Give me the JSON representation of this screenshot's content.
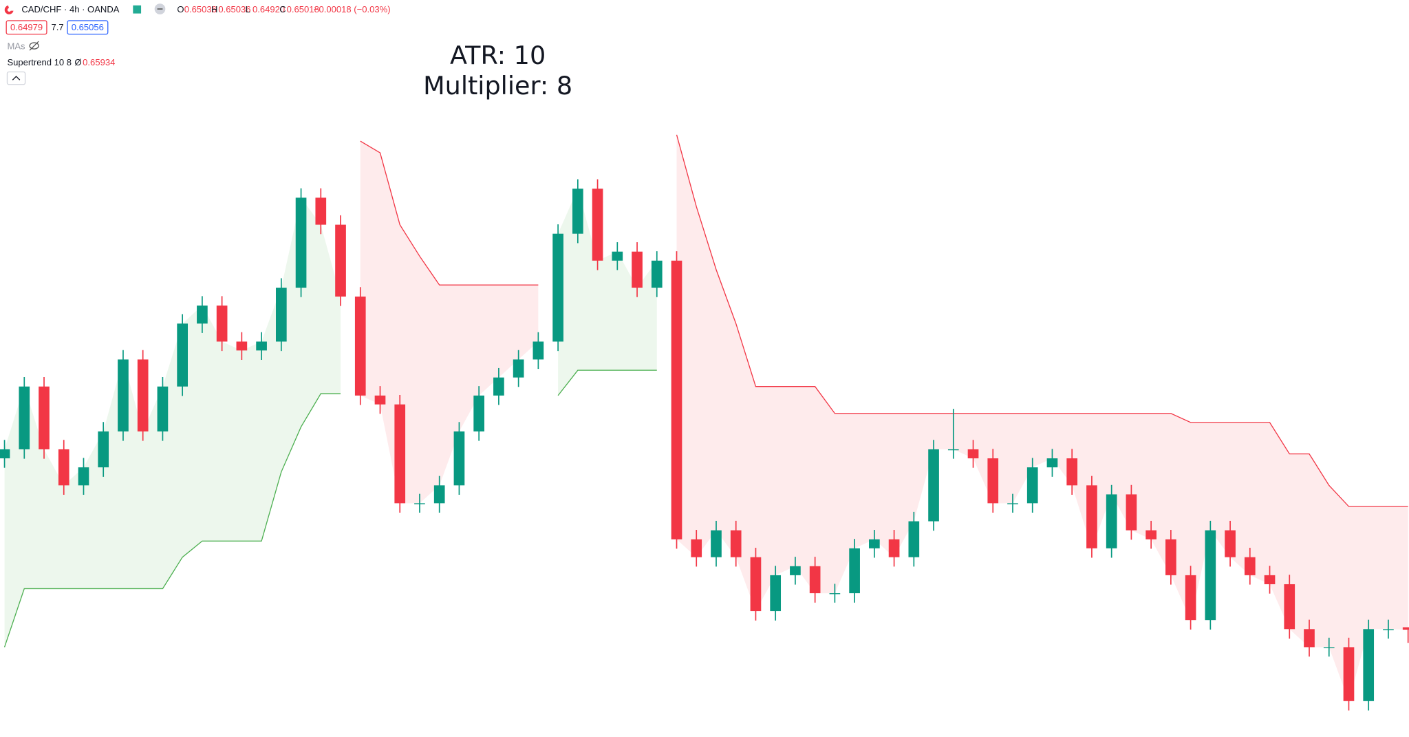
{
  "legend": {
    "symbol": "CAD/CHF · 4h · OANDA",
    "ohlc": [
      {
        "label": "O",
        "value": "0.65036"
      },
      {
        "label": "H",
        "value": "0.65036"
      },
      {
        "label": "L",
        "value": "0.64920"
      },
      {
        "label": "C",
        "value": "0.65018"
      }
    ],
    "change": "−0.00018 (−0.03%)",
    "sell": "0.64979",
    "spread": "7.7",
    "buy": "0.65056",
    "mas": "MAs",
    "indicator": {
      "name": "Supertrend 10 8",
      "symbol": "Ø",
      "value": "0.65934"
    }
  },
  "annotation": [
    "ATR: 10",
    "Multiplier: 8"
  ],
  "chart_data": {
    "type": "candlestick",
    "ylim": [
      0.6422,
      0.697
    ],
    "up_color": "#089981",
    "down_color": "#f23645",
    "open": [
      0.66292,
      0.66359,
      0.66826,
      0.66359,
      0.66091,
      0.66225,
      0.66492,
      0.67027,
      0.66492,
      0.66826,
      0.67294,
      0.67428,
      0.6716,
      0.67094,
      0.6716,
      0.67561,
      0.6823,
      0.68029,
      0.67495,
      0.66759,
      0.66693,
      0.65958,
      0.65958,
      0.66091,
      0.66492,
      0.66759,
      0.66893,
      0.67027,
      0.6716,
      0.67962,
      0.68297,
      0.67762,
      0.67829,
      0.67561,
      0.67762,
      0.6569,
      0.65557,
      0.65757,
      0.65557,
      0.65156,
      0.65423,
      0.6549,
      0.65289,
      0.65289,
      0.65623,
      0.6569,
      0.65557,
      0.65824,
      0.66359,
      0.66359,
      0.66292,
      0.65958,
      0.65958,
      0.66225,
      0.66292,
      0.66091,
      0.65623,
      0.66024,
      0.65757,
      0.6569,
      0.65423,
      0.65089,
      0.65757,
      0.65557,
      0.65423,
      0.65356,
      0.65022,
      0.64888,
      0.64888,
      0.64487,
      0.65022,
      0.65036
    ],
    "high": [
      0.66429,
      0.66896,
      0.66896,
      0.66429,
      0.66295,
      0.66562,
      0.67097,
      0.67097,
      0.66896,
      0.67364,
      0.67498,
      0.67498,
      0.6723,
      0.6723,
      0.67631,
      0.683,
      0.683,
      0.68099,
      0.67565,
      0.66829,
      0.66763,
      0.66028,
      0.66161,
      0.66562,
      0.66829,
      0.66963,
      0.67097,
      0.6723,
      0.68032,
      0.68367,
      0.68367,
      0.67899,
      0.67899,
      0.67832,
      0.67832,
      0.6576,
      0.65827,
      0.65827,
      0.65627,
      0.65493,
      0.6556,
      0.6556,
      0.65359,
      0.65693,
      0.6576,
      0.6576,
      0.65894,
      0.66429,
      0.6666,
      0.66429,
      0.66362,
      0.66028,
      0.66295,
      0.66362,
      0.66362,
      0.66161,
      0.66094,
      0.66094,
      0.65827,
      0.6576,
      0.65493,
      0.65827,
      0.65827,
      0.65627,
      0.65493,
      0.65426,
      0.65092,
      0.64958,
      0.64958,
      0.65092,
      0.65092,
      0.65036
    ],
    "low": [
      0.66222,
      0.66289,
      0.66289,
      0.66021,
      0.66021,
      0.66155,
      0.66422,
      0.66422,
      0.66422,
      0.66756,
      0.67224,
      0.6709,
      0.67024,
      0.67024,
      0.6709,
      0.67491,
      0.67959,
      0.67425,
      0.66689,
      0.66623,
      0.65888,
      0.65888,
      0.65888,
      0.66021,
      0.66422,
      0.66689,
      0.66823,
      0.66957,
      0.6709,
      0.67892,
      0.67692,
      0.67692,
      0.67491,
      0.67491,
      0.6562,
      0.65487,
      0.65487,
      0.65487,
      0.65086,
      0.65086,
      0.65353,
      0.65219,
      0.65219,
      0.65219,
      0.65553,
      0.65487,
      0.65487,
      0.65754,
      0.66289,
      0.66222,
      0.65888,
      0.65888,
      0.65888,
      0.66155,
      0.66021,
      0.65553,
      0.65553,
      0.65687,
      0.6562,
      0.65353,
      0.65019,
      0.65019,
      0.65487,
      0.65353,
      0.65286,
      0.64952,
      0.64818,
      0.64818,
      0.64417,
      0.64417,
      0.64952,
      0.6492
    ],
    "close": [
      0.66359,
      0.66826,
      0.66359,
      0.66091,
      0.66225,
      0.66492,
      0.67027,
      0.66492,
      0.66826,
      0.67294,
      0.67428,
      0.6716,
      0.67094,
      0.6716,
      0.67561,
      0.6823,
      0.68029,
      0.67495,
      0.66759,
      0.66693,
      0.65958,
      0.65958,
      0.66091,
      0.66492,
      0.66759,
      0.66893,
      0.67027,
      0.6716,
      0.67962,
      0.68297,
      0.67762,
      0.67829,
      0.67561,
      0.67762,
      0.6569,
      0.65557,
      0.65757,
      0.65557,
      0.65156,
      0.65423,
      0.6549,
      0.65289,
      0.65289,
      0.65623,
      0.6569,
      0.65557,
      0.65824,
      0.66359,
      0.66359,
      0.66292,
      0.65958,
      0.65958,
      0.66225,
      0.66292,
      0.66091,
      0.65623,
      0.66024,
      0.65757,
      0.6569,
      0.65423,
      0.65089,
      0.65757,
      0.65557,
      0.65423,
      0.65356,
      0.65022,
      0.64888,
      0.64888,
      0.64487,
      0.65022,
      0.65022,
      0.65018
    ],
    "series": [
      {
        "color": "#4caf50",
        "fill": "rgba(76,175,80,0.1)",
        "values": [
          0.64888,
          0.65323,
          0.65323,
          0.65323,
          0.65323,
          0.65323,
          0.65323,
          0.65323,
          0.65323,
          0.65557,
          0.65677,
          0.65677,
          0.65677,
          0.65677,
          0.66191,
          0.66526,
          0.66773,
          0.66773,
          null,
          null,
          null,
          null,
          null,
          null,
          null,
          null,
          null,
          null,
          0.66759,
          0.66947,
          0.66947,
          0.66947,
          0.66947,
          0.66947,
          null,
          null,
          null,
          null,
          null,
          null,
          null,
          null,
          null,
          null,
          null,
          null,
          null,
          null,
          null,
          null,
          null,
          null,
          null,
          null,
          null,
          null,
          null,
          null,
          null,
          null,
          null,
          null,
          null,
          null,
          null,
          null,
          null,
          null,
          null,
          null,
          null,
          null
        ]
      },
      {
        "color": "#f23645",
        "fill": "rgba(242,54,69,0.1)",
        "values": [
          null,
          null,
          null,
          null,
          null,
          null,
          null,
          null,
          null,
          null,
          null,
          null,
          null,
          null,
          null,
          null,
          null,
          null,
          0.68651,
          0.68564,
          0.68029,
          0.67795,
          0.67581,
          0.67581,
          0.67581,
          0.67581,
          0.67581,
          0.67581,
          null,
          null,
          null,
          null,
          null,
          null,
          0.68698,
          0.68163,
          0.67695,
          0.67294,
          0.66826,
          0.66826,
          0.66826,
          0.66826,
          0.66626,
          0.66626,
          0.66626,
          0.66626,
          0.66626,
          0.66626,
          0.66626,
          0.66626,
          0.66626,
          0.66626,
          0.66626,
          0.66626,
          0.66626,
          0.66626,
          0.66626,
          0.66626,
          0.66626,
          0.66626,
          0.66559,
          0.66559,
          0.66559,
          0.66559,
          0.66559,
          0.66325,
          0.66325,
          0.66091,
          0.65934,
          0.65934,
          0.65934,
          0.65934
        ]
      }
    ]
  }
}
